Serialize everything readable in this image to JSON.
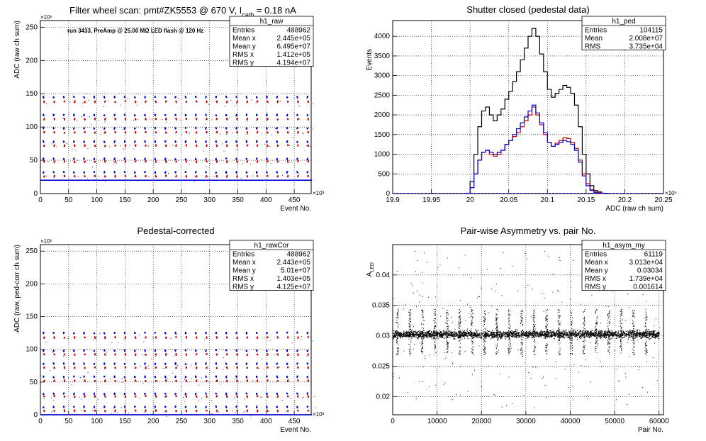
{
  "chart_data": [
    {
      "type": "scatter",
      "title": "Filter wheel scan: pmt#ZK5553 @   670 V, I",
      "title_sub": "cath",
      "title_tail": " = 0.18 nA",
      "annotation": "run 3433, PreAmp @ 25.00 MΩ LED flash @  120 Hz",
      "xlabel": "Event No.",
      "ylabel": "ADC (raw ch sum)",
      "x_exponent": "×10³",
      "y_exponent": "×10⁶",
      "xlim": [
        0,
        480
      ],
      "ylim": [
        0,
        260
      ],
      "xticks": [
        0,
        50,
        100,
        150,
        200,
        250,
        300,
        350,
        400,
        450
      ],
      "xtick_labels": [
        "0",
        "50",
        "100",
        "150",
        "200",
        "250",
        "300",
        "350",
        "400",
        "450"
      ],
      "yticks": [
        0,
        50,
        100,
        150,
        200,
        250
      ],
      "ytick_labels": [
        "0",
        "50",
        "100",
        "150",
        "200",
        "250"
      ],
      "grid": true,
      "baseline": 20,
      "levels": [
        145,
        138,
        118,
        112,
        98,
        92,
        78,
        72,
        52,
        48,
        32,
        26
      ],
      "step_period": 18,
      "stats": {
        "name": "h1_raw",
        "rows": [
          {
            "label": "Entries",
            "value": "488962"
          },
          {
            "label": "Mean x",
            "value": "2.445e+05"
          },
          {
            "label": "Mean y",
            "value": "6.495e+07"
          },
          {
            "label": "RMS x",
            "value": "1.412e+05"
          },
          {
            "label": "RMS y",
            "value": "4.194e+07"
          }
        ]
      }
    },
    {
      "type": "line",
      "title": "Shutter closed (pedestal data)",
      "xlabel": "ADC (raw ch sum)",
      "ylabel": "Events",
      "x_exponent": "×10⁶",
      "xlim": [
        19.9,
        20.25
      ],
      "ylim": [
        0,
        4400
      ],
      "xticks": [
        19.9,
        19.95,
        20,
        20.05,
        20.1,
        20.15,
        20.2,
        20.25
      ],
      "xtick_labels": [
        "19.9",
        "19.95",
        "20",
        "20.05",
        "20.1",
        "20.15",
        "20.2",
        "20.25"
      ],
      "yticks": [
        0,
        500,
        1000,
        1500,
        2000,
        2500,
        3000,
        3500,
        4000
      ],
      "ytick_labels": [
        "0",
        "500",
        "1000",
        "1500",
        "2000",
        "2500",
        "3000",
        "3500",
        "4000"
      ],
      "grid": true,
      "series": [
        {
          "color": "#000000",
          "x": [
            19.995,
            20.0,
            20.005,
            20.01,
            20.015,
            20.02,
            20.025,
            20.03,
            20.035,
            20.04,
            20.045,
            20.05,
            20.055,
            20.06,
            20.065,
            20.07,
            20.075,
            20.08,
            20.085,
            20.09,
            20.095,
            20.1,
            20.105,
            20.11,
            20.115,
            20.12,
            20.125,
            20.13,
            20.135,
            20.14,
            20.145,
            20.15,
            20.155,
            20.16,
            20.165,
            20.17,
            20.175
          ],
          "y": [
            10,
            300,
            1000,
            1700,
            2100,
            2200,
            2000,
            1850,
            2000,
            2150,
            2400,
            2600,
            2850,
            3100,
            3400,
            3700,
            4000,
            4200,
            4000,
            3550,
            3100,
            2650,
            2450,
            2550,
            2650,
            2750,
            2700,
            2550,
            2250,
            1700,
            1000,
            500,
            200,
            80,
            40,
            10,
            0
          ]
        },
        {
          "color": "#cc0000",
          "x": [
            19.995,
            20.0,
            20.005,
            20.01,
            20.015,
            20.02,
            20.025,
            20.03,
            20.035,
            20.04,
            20.045,
            20.05,
            20.055,
            20.06,
            20.065,
            20.07,
            20.075,
            20.08,
            20.085,
            20.09,
            20.095,
            20.1,
            20.105,
            20.11,
            20.115,
            20.12,
            20.125,
            20.13,
            20.135,
            20.14,
            20.145,
            20.15,
            20.155,
            20.16,
            20.165,
            20.17,
            20.175
          ],
          "y": [
            5,
            150,
            500,
            850,
            1050,
            1100,
            1000,
            950,
            1000,
            1100,
            1250,
            1350,
            1450,
            1550,
            1700,
            1850,
            2000,
            2200,
            2000,
            1750,
            1500,
            1300,
            1200,
            1280,
            1350,
            1420,
            1400,
            1300,
            1150,
            850,
            500,
            250,
            100,
            40,
            20,
            5,
            0
          ]
        },
        {
          "color": "#0000cc",
          "x": [
            19.995,
            20.0,
            20.005,
            20.01,
            20.015,
            20.02,
            20.025,
            20.03,
            20.035,
            20.04,
            20.045,
            20.05,
            20.055,
            20.06,
            20.065,
            20.07,
            20.075,
            20.08,
            20.085,
            20.09,
            20.095,
            20.1,
            20.105,
            20.11,
            20.115,
            20.12,
            20.125,
            20.13,
            20.135,
            20.14,
            20.145,
            20.15,
            20.155,
            20.16,
            20.165,
            20.17,
            20.175
          ],
          "y": [
            5,
            150,
            500,
            850,
            1050,
            1100,
            1050,
            1000,
            1050,
            1100,
            1250,
            1350,
            1500,
            1650,
            1800,
            1950,
            2100,
            2250,
            2050,
            1800,
            1550,
            1300,
            1200,
            1250,
            1300,
            1350,
            1320,
            1250,
            1100,
            800,
            450,
            200,
            80,
            30,
            10,
            5,
            0
          ]
        }
      ],
      "stats": {
        "name": "h1_ped",
        "rows": [
          {
            "label": "Entries",
            "value": "104115"
          },
          {
            "label": "Mean",
            "value": "2.008e+07"
          },
          {
            "label": "RMS",
            "value": "3.735e+04"
          }
        ]
      }
    },
    {
      "type": "scatter",
      "title": "Pedestal-corrected",
      "xlabel": "Event No.",
      "ylabel": "ADC (raw, ped-corr ch sum)",
      "x_exponent": "×10³",
      "y_exponent": "×10⁶",
      "xlim": [
        0,
        480
      ],
      "ylim": [
        0,
        260
      ],
      "xticks": [
        0,
        50,
        100,
        150,
        200,
        250,
        300,
        350,
        400,
        450
      ],
      "xtick_labels": [
        "0",
        "50",
        "100",
        "150",
        "200",
        "250",
        "300",
        "350",
        "400",
        "450"
      ],
      "yticks": [
        0,
        50,
        100,
        150,
        200,
        250
      ],
      "ytick_labels": [
        "0",
        "50",
        "100",
        "150",
        "200",
        "250"
      ],
      "grid": true,
      "baseline": 0,
      "levels": [
        125,
        118,
        98,
        92,
        78,
        72,
        58,
        52,
        32,
        28,
        12,
        6
      ],
      "step_period": 18,
      "stats": {
        "name": "h1_rawCor",
        "rows": [
          {
            "label": "Entries",
            "value": "488962"
          },
          {
            "label": "Mean x",
            "value": "2.443e+05"
          },
          {
            "label": "Mean y",
            "value": "5.01e+07"
          },
          {
            "label": "RMS x",
            "value": "1.403e+05"
          },
          {
            "label": "RMS y",
            "value": "4.125e+07"
          }
        ]
      }
    },
    {
      "type": "scatter",
      "title": "Pair-wise Asymmetry vs. pair No.",
      "xlabel": "Pair No.",
      "ylabel": "A",
      "ylabel_sub": "LED",
      "xlim": [
        0,
        61000
      ],
      "ylim": [
        0.017,
        0.045
      ],
      "xticks": [
        0,
        10000,
        20000,
        30000,
        40000,
        50000,
        60000
      ],
      "xtick_labels": [
        "0",
        "10000",
        "20000",
        "30000",
        "40000",
        "50000",
        "60000"
      ],
      "yticks": [
        0.02,
        0.025,
        0.03,
        0.035,
        0.04
      ],
      "ytick_labels": [
        "0.02",
        "0.025",
        "0.03",
        "0.035",
        "0.04"
      ],
      "grid": true,
      "center": 0.0303,
      "band_halfwidth": 0.001,
      "spike_x": [
        1000,
        3800,
        6600,
        9400,
        12200,
        15000,
        17800,
        20600,
        23400,
        26200,
        29000,
        31800,
        34600,
        37400,
        40200,
        43000,
        45800,
        48600,
        51400,
        54200,
        57000
      ],
      "x_end": 60000,
      "stats": {
        "name": "h1_asym_my",
        "rows": [
          {
            "label": "Entries",
            "value": "61119"
          },
          {
            "label": "Mean x",
            "value": "3.013e+04"
          },
          {
            "label": "Mean y",
            "value": "0.03034"
          },
          {
            "label": "RMS x",
            "value": "1.739e+04"
          },
          {
            "label": "RMS y",
            "value": "0.001614"
          }
        ]
      }
    }
  ]
}
